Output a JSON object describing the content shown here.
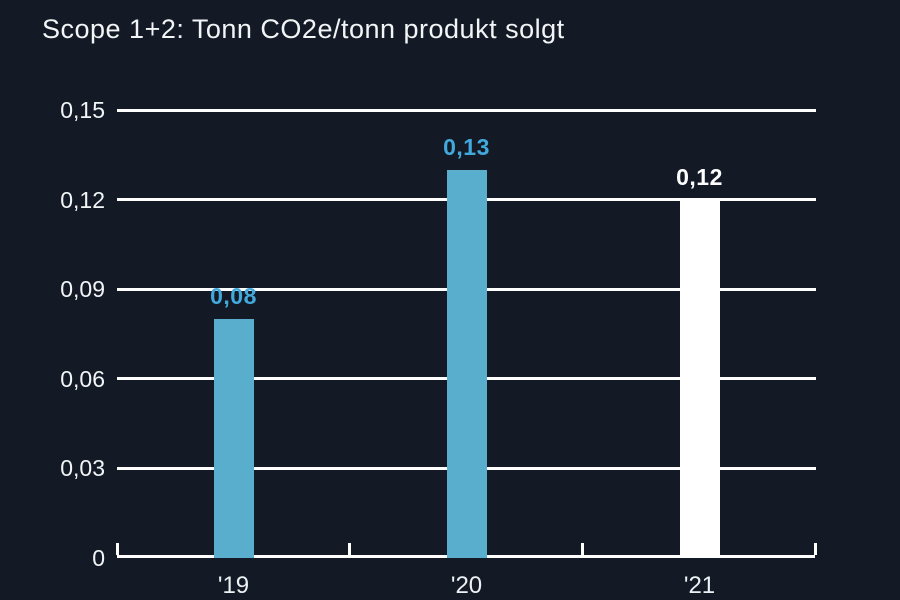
{
  "page": {
    "background": "#131a26"
  },
  "chart_data": {
    "type": "bar",
    "title": "Scope 1+2: Tonn CO2e/tonn produkt solgt",
    "categories": [
      "'19",
      "'20",
      "'21"
    ],
    "values": [
      0.08,
      0.13,
      0.12
    ],
    "value_labels": [
      "0,08",
      "0,13",
      "0,12"
    ],
    "y_ticks": [
      0,
      0.03,
      0.06,
      0.09,
      0.12,
      0.15
    ],
    "y_tick_labels": [
      "0",
      "0,03",
      "0,06",
      "0,09",
      "0,12",
      "0,15"
    ],
    "ylim": [
      0,
      0.15
    ],
    "xlabel": "",
    "ylabel": "",
    "grid": true,
    "legend_position": "none",
    "colors": {
      "background": "#131a26",
      "bar_fill": [
        "#5aaecd",
        "#5aaecd",
        "#ffffff"
      ],
      "value_label": [
        "#42a9dc",
        "#42a9dc",
        "#ffffff"
      ],
      "gridline": "#ffffff",
      "axis": "#ffffff",
      "text": "#f2f4f6"
    }
  }
}
